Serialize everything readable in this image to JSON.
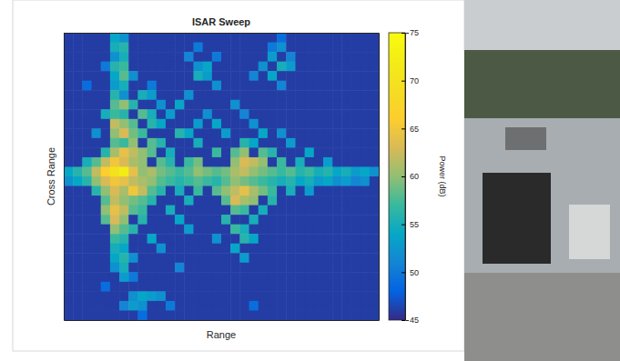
{
  "chart_data": {
    "type": "heatmap",
    "title": "ISAR Sweep",
    "x_label": "Range",
    "y_label": "Cross Range",
    "tick_labels": false,
    "z": [
      [
        46,
        46,
        46,
        46,
        46,
        54,
        52,
        46,
        46,
        46,
        46,
        46,
        46,
        46,
        46,
        46,
        46,
        46,
        46,
        46,
        46,
        46,
        46,
        49,
        46,
        46,
        46,
        46,
        46,
        46,
        46,
        46,
        46,
        46
      ],
      [
        46,
        46,
        46,
        46,
        46,
        55,
        56,
        46,
        46,
        46,
        46,
        46,
        46,
        46,
        50,
        46,
        46,
        46,
        46,
        46,
        46,
        46,
        50,
        52,
        46,
        46,
        46,
        46,
        46,
        46,
        46,
        46,
        46,
        46
      ],
      [
        46,
        46,
        46,
        46,
        46,
        52,
        55,
        46,
        46,
        46,
        46,
        46,
        46,
        51,
        46,
        46,
        50,
        46,
        46,
        46,
        46,
        46,
        53,
        46,
        51,
        46,
        46,
        46,
        46,
        46,
        46,
        46,
        46,
        46
      ],
      [
        46,
        46,
        46,
        46,
        50,
        56,
        57,
        46,
        46,
        46,
        46,
        46,
        46,
        46,
        52,
        54,
        46,
        46,
        46,
        46,
        46,
        52,
        46,
        55,
        53,
        46,
        46,
        46,
        46,
        46,
        46,
        46,
        46,
        46
      ],
      [
        46,
        46,
        46,
        46,
        46,
        54,
        58,
        52,
        46,
        46,
        46,
        46,
        46,
        46,
        55,
        53,
        46,
        46,
        46,
        46,
        51,
        46,
        54,
        46,
        46,
        46,
        46,
        46,
        46,
        46,
        46,
        46,
        46,
        46
      ],
      [
        46,
        46,
        49,
        46,
        46,
        53,
        55,
        46,
        46,
        50,
        46,
        46,
        46,
        46,
        46,
        46,
        52,
        46,
        46,
        46,
        46,
        46,
        46,
        51,
        46,
        46,
        46,
        46,
        46,
        46,
        46,
        46,
        46,
        46
      ],
      [
        46,
        46,
        46,
        46,
        46,
        56,
        52,
        46,
        55,
        53,
        46,
        46,
        46,
        52,
        46,
        46,
        46,
        46,
        46,
        46,
        46,
        46,
        46,
        46,
        46,
        46,
        46,
        46,
        46,
        46,
        46,
        46,
        46,
        46
      ],
      [
        46,
        46,
        46,
        46,
        46,
        58,
        60,
        56,
        46,
        46,
        52,
        46,
        54,
        46,
        46,
        46,
        46,
        46,
        52,
        46,
        46,
        46,
        46,
        46,
        46,
        46,
        46,
        46,
        46,
        46,
        46,
        46,
        46,
        46
      ],
      [
        46,
        46,
        46,
        46,
        55,
        57,
        56,
        46,
        58,
        55,
        46,
        53,
        46,
        46,
        46,
        52,
        46,
        46,
        46,
        51,
        46,
        46,
        46,
        46,
        46,
        46,
        46,
        46,
        46,
        46,
        46,
        46,
        46,
        46
      ],
      [
        46,
        46,
        46,
        46,
        46,
        62,
        60,
        58,
        46,
        56,
        54,
        46,
        46,
        46,
        53,
        46,
        54,
        46,
        46,
        46,
        52,
        46,
        46,
        46,
        46,
        46,
        46,
        46,
        46,
        46,
        46,
        46,
        46,
        46
      ],
      [
        46,
        46,
        46,
        52,
        46,
        60,
        63,
        59,
        57,
        46,
        46,
        46,
        56,
        54,
        46,
        46,
        46,
        53,
        46,
        46,
        46,
        54,
        46,
        52,
        46,
        46,
        46,
        46,
        46,
        46,
        46,
        46,
        46,
        46
      ],
      [
        46,
        46,
        46,
        46,
        46,
        58,
        57,
        60,
        46,
        58,
        56,
        46,
        46,
        46,
        55,
        46,
        46,
        46,
        46,
        56,
        54,
        46,
        46,
        46,
        53,
        46,
        46,
        46,
        46,
        46,
        46,
        46,
        46,
        46
      ],
      [
        46,
        46,
        46,
        46,
        56,
        61,
        64,
        62,
        60,
        58,
        46,
        55,
        46,
        46,
        46,
        46,
        57,
        46,
        58,
        60,
        46,
        58,
        56,
        46,
        46,
        46,
        54,
        46,
        46,
        46,
        46,
        46,
        46,
        46
      ],
      [
        46,
        46,
        55,
        58,
        62,
        65,
        63,
        61,
        60,
        46,
        58,
        56,
        46,
        57,
        59,
        46,
        46,
        46,
        60,
        63,
        62,
        60,
        46,
        57,
        46,
        55,
        46,
        46,
        53,
        46,
        46,
        46,
        46,
        46
      ],
      [
        54,
        56,
        58,
        62,
        66,
        70,
        72,
        64,
        60,
        61,
        59,
        58,
        57,
        58,
        60,
        59,
        58,
        59,
        61,
        62,
        60,
        59,
        58,
        57,
        58,
        56,
        57,
        55,
        56,
        54,
        55,
        53,
        54,
        52
      ],
      [
        52,
        54,
        56,
        60,
        63,
        65,
        64,
        62,
        61,
        60,
        58,
        57,
        56,
        57,
        58,
        57,
        56,
        58,
        60,
        59,
        58,
        57,
        56,
        55,
        56,
        54,
        55,
        53,
        54,
        52,
        53,
        51,
        52,
        46
      ],
      [
        46,
        46,
        46,
        56,
        60,
        63,
        61,
        65,
        62,
        58,
        56,
        46,
        55,
        46,
        57,
        46,
        58,
        60,
        62,
        64,
        61,
        59,
        57,
        46,
        55,
        46,
        53,
        46,
        46,
        46,
        46,
        46,
        46,
        46
      ],
      [
        46,
        46,
        46,
        46,
        58,
        62,
        60,
        59,
        58,
        56,
        46,
        46,
        46,
        55,
        46,
        46,
        46,
        58,
        63,
        61,
        60,
        46,
        56,
        46,
        46,
        46,
        46,
        46,
        46,
        46,
        46,
        46,
        46,
        46
      ],
      [
        46,
        46,
        46,
        46,
        60,
        64,
        62,
        58,
        57,
        46,
        46,
        55,
        46,
        46,
        46,
        46,
        46,
        46,
        58,
        57,
        46,
        55,
        46,
        46,
        46,
        46,
        46,
        46,
        46,
        46,
        46,
        46,
        46,
        46
      ],
      [
        46,
        46,
        46,
        46,
        58,
        63,
        60,
        46,
        56,
        46,
        46,
        46,
        54,
        46,
        46,
        46,
        46,
        56,
        46,
        46,
        55,
        46,
        46,
        46,
        46,
        46,
        46,
        46,
        46,
        46,
        46,
        46,
        46,
        46
      ],
      [
        46,
        46,
        46,
        46,
        46,
        60,
        58,
        56,
        46,
        46,
        46,
        46,
        46,
        53,
        46,
        46,
        46,
        46,
        57,
        55,
        46,
        46,
        46,
        46,
        46,
        46,
        46,
        46,
        46,
        46,
        46,
        46,
        46,
        46
      ],
      [
        46,
        46,
        46,
        46,
        46,
        57,
        56,
        46,
        46,
        54,
        46,
        46,
        46,
        46,
        46,
        46,
        52,
        46,
        46,
        56,
        54,
        46,
        46,
        46,
        46,
        46,
        46,
        46,
        46,
        46,
        46,
        46,
        46,
        46
      ],
      [
        46,
        46,
        46,
        46,
        46,
        55,
        54,
        46,
        46,
        46,
        52,
        46,
        46,
        46,
        46,
        46,
        46,
        46,
        54,
        46,
        46,
        46,
        46,
        46,
        46,
        46,
        46,
        46,
        46,
        46,
        46,
        46,
        46,
        46
      ],
      [
        46,
        46,
        46,
        46,
        46,
        54,
        56,
        52,
        46,
        46,
        46,
        46,
        46,
        46,
        46,
        46,
        46,
        46,
        46,
        53,
        46,
        46,
        46,
        46,
        46,
        46,
        46,
        46,
        46,
        46,
        46,
        46,
        46,
        46
      ],
      [
        46,
        46,
        46,
        46,
        46,
        52,
        55,
        46,
        46,
        46,
        46,
        46,
        51,
        46,
        46,
        46,
        46,
        46,
        46,
        46,
        46,
        46,
        46,
        46,
        46,
        46,
        46,
        46,
        46,
        46,
        46,
        46,
        46,
        46
      ],
      [
        46,
        46,
        46,
        46,
        46,
        46,
        53,
        50,
        46,
        46,
        46,
        46,
        46,
        46,
        46,
        46,
        46,
        46,
        46,
        46,
        46,
        46,
        46,
        46,
        46,
        46,
        46,
        46,
        46,
        46,
        46,
        46,
        46,
        46
      ],
      [
        46,
        46,
        46,
        46,
        49,
        46,
        46,
        46,
        46,
        46,
        46,
        46,
        46,
        46,
        46,
        46,
        46,
        46,
        46,
        46,
        46,
        46,
        46,
        46,
        46,
        46,
        46,
        46,
        46,
        46,
        46,
        46,
        46,
        46
      ],
      [
        46,
        46,
        46,
        46,
        46,
        46,
        46,
        52,
        54,
        53,
        52,
        46,
        46,
        46,
        46,
        46,
        46,
        46,
        46,
        46,
        46,
        46,
        46,
        46,
        46,
        46,
        46,
        46,
        46,
        46,
        46,
        46,
        46,
        46
      ],
      [
        46,
        46,
        46,
        46,
        46,
        46,
        51,
        53,
        52,
        46,
        46,
        50,
        46,
        46,
        46,
        46,
        46,
        46,
        46,
        46,
        49,
        46,
        46,
        46,
        46,
        46,
        46,
        46,
        46,
        46,
        46,
        46,
        46,
        46
      ],
      [
        46,
        46,
        46,
        46,
        46,
        46,
        46,
        46,
        49,
        46,
        46,
        46,
        46,
        46,
        46,
        46,
        46,
        46,
        46,
        46,
        46,
        46,
        46,
        46,
        46,
        46,
        46,
        46,
        46,
        46,
        46,
        46,
        46,
        46
      ]
    ],
    "colorbar": {
      "label": "Power (dB)",
      "range": [
        45,
        75
      ],
      "ticks": [
        45,
        50,
        55,
        60,
        65,
        70,
        75
      ]
    }
  }
}
